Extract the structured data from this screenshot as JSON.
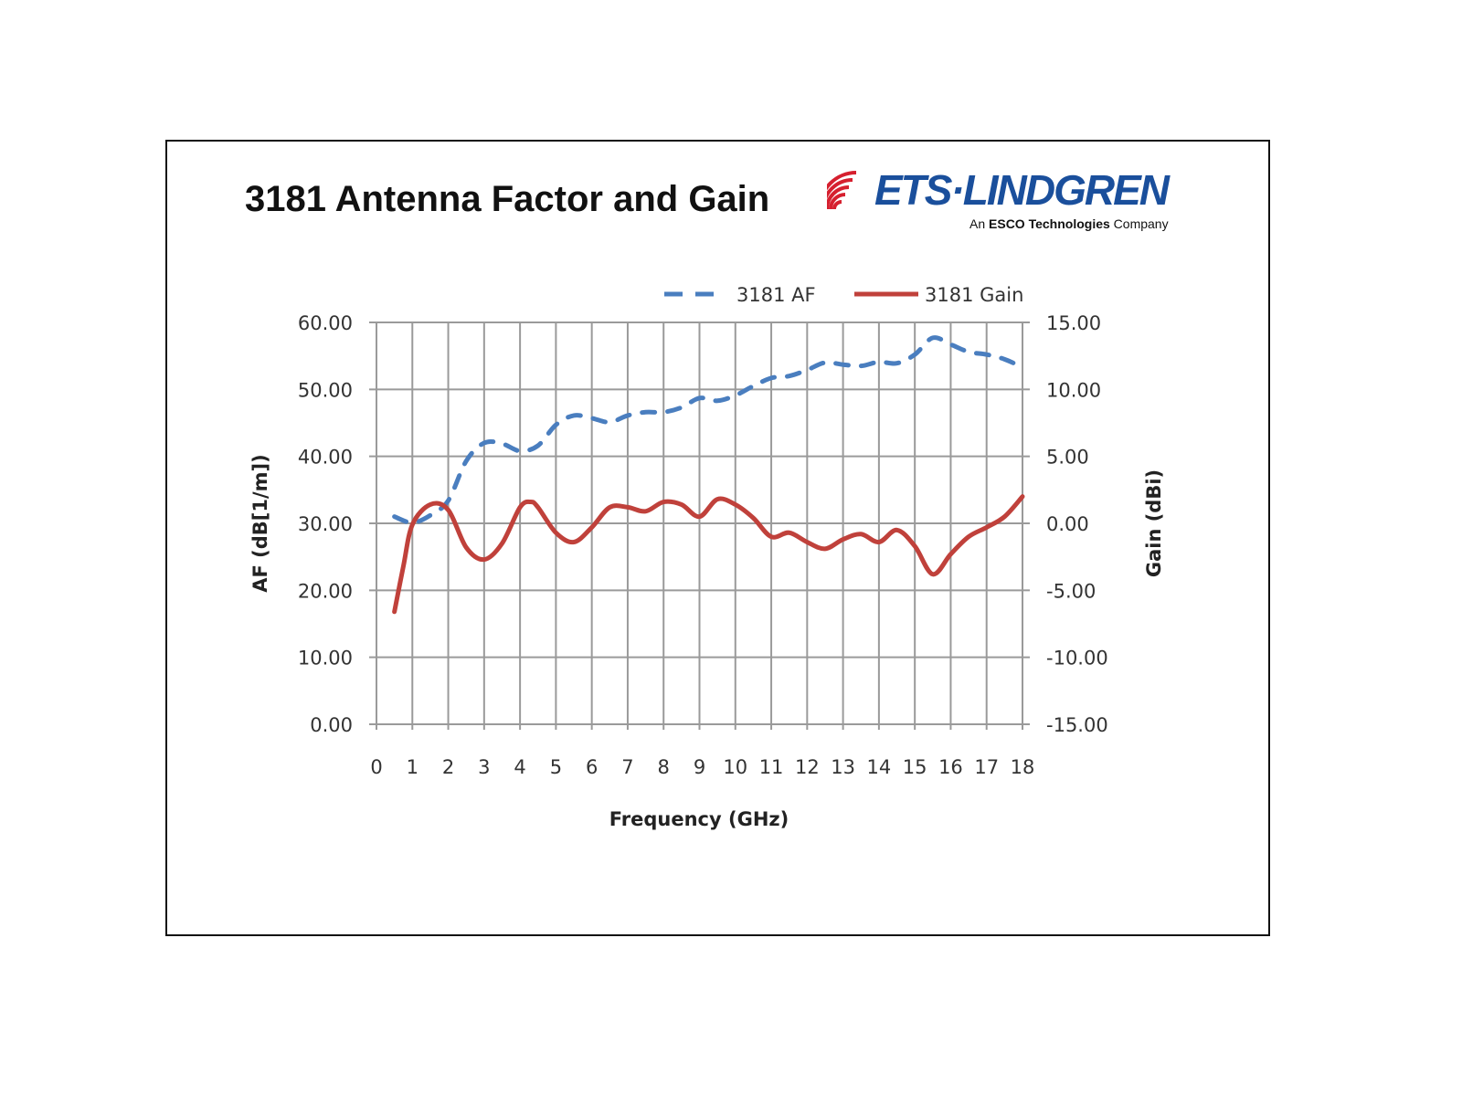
{
  "title": "3181 Antenna Factor and Gain",
  "logo": {
    "name": "ETS·LINDGREN",
    "sub_prefix": "An ",
    "sub_bold": "ESCO Technologies",
    "sub_suffix": " Company"
  },
  "colors": {
    "af": "#4a7ebf",
    "gain": "#c0413b",
    "grid": "#9a9a9a",
    "logo_blue": "#1a4f9c",
    "logo_red": "#d6202f"
  },
  "chart_data": {
    "type": "line",
    "title": "3181 Antenna Factor and Gain",
    "xlabel": "Frequency (GHz)",
    "ylabel": "AF (dB[1/m])",
    "y2label": "Gain (dBi)",
    "xlim": [
      0,
      18
    ],
    "ylim": [
      0,
      60
    ],
    "y2lim": [
      -15,
      15
    ],
    "grid": true,
    "legend_position": "top",
    "x_ticks": [
      "0",
      "1",
      "2",
      "3",
      "4",
      "5",
      "6",
      "7",
      "8",
      "9",
      "10",
      "11",
      "12",
      "13",
      "14",
      "15",
      "16",
      "17",
      "18"
    ],
    "y_ticks": [
      "0.00",
      "10.00",
      "20.00",
      "30.00",
      "40.00",
      "50.00",
      "60.00"
    ],
    "y2_ticks": [
      "-15.00",
      "-10.00",
      "-5.00",
      "0.00",
      "5.00",
      "10.00",
      "15.00"
    ],
    "series": [
      {
        "name": "3181 AF",
        "axis": "left",
        "style": "dashed",
        "x": [
          0.5,
          1,
          1.5,
          2,
          2.5,
          3,
          3.5,
          4,
          4.5,
          5,
          5.5,
          6,
          6.5,
          7,
          7.5,
          8,
          8.5,
          9,
          9.5,
          10,
          10.5,
          11,
          11.5,
          12,
          12.5,
          13,
          13.5,
          14,
          14.5,
          15,
          15.5,
          16,
          16.5,
          17,
          17.5,
          18
        ],
        "values": [
          31.0,
          30.1,
          31.2,
          33.4,
          39.3,
          42.0,
          41.9,
          40.8,
          41.6,
          44.7,
          46.1,
          45.7,
          45.1,
          46.1,
          46.6,
          46.6,
          47.3,
          48.7,
          48.3,
          49.1,
          50.5,
          51.7,
          52.0,
          52.9,
          54.0,
          53.7,
          53.5,
          54.1,
          53.9,
          55.2,
          57.7,
          56.7,
          55.6,
          55.2,
          54.5,
          53.3
        ]
      },
      {
        "name": "3181 Gain",
        "axis": "right",
        "style": "solid",
        "x": [
          0.5,
          0.75,
          1,
          1.5,
          2,
          2.5,
          3,
          3.5,
          4,
          4.3,
          4.5,
          5,
          5.5,
          6,
          6.5,
          7,
          7.5,
          8,
          8.5,
          9,
          9.5,
          10,
          10.5,
          11,
          11.5,
          12,
          12.5,
          13,
          13.5,
          14,
          14.5,
          15,
          15.5,
          16,
          16.5,
          17,
          17.5,
          18
        ],
        "values": [
          -6.6,
          -3.2,
          -0.1,
          1.4,
          1.0,
          -1.8,
          -2.7,
          -1.5,
          1.2,
          1.6,
          1.2,
          -0.7,
          -1.4,
          -0.3,
          1.2,
          1.2,
          0.9,
          1.6,
          1.4,
          0.5,
          1.8,
          1.4,
          0.4,
          -1.0,
          -0.7,
          -1.4,
          -1.9,
          -1.2,
          -0.8,
          -1.4,
          -0.5,
          -1.7,
          -3.8,
          -2.3,
          -1.0,
          -0.3,
          0.5,
          2.0
        ]
      }
    ]
  }
}
